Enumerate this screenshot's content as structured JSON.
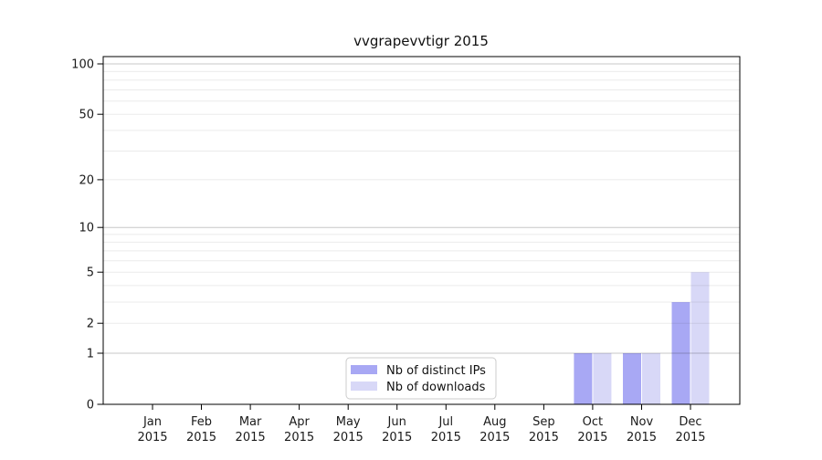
{
  "chart_data": {
    "type": "bar",
    "title": "vvgrapevvtigr 2015",
    "categories": [
      "Jan 2015",
      "Feb 2015",
      "Mar 2015",
      "Apr 2015",
      "May 2015",
      "Jun 2015",
      "Jul 2015",
      "Aug 2015",
      "Sep 2015",
      "Oct 2015",
      "Nov 2015",
      "Dec 2015"
    ],
    "series": [
      {
        "name": "Nb of distinct IPs",
        "color": "#a8a8f4",
        "values": [
          0,
          0,
          0,
          0,
          0,
          0,
          0,
          0,
          0,
          1,
          1,
          3
        ]
      },
      {
        "name": "Nb of downloads",
        "color": "#d8d8f7",
        "values": [
          0,
          0,
          0,
          0,
          0,
          0,
          0,
          0,
          0,
          1,
          1,
          5
        ]
      }
    ],
    "yscale": "log1p",
    "ylim": [
      0,
      110
    ],
    "yticks": [
      0,
      1,
      2,
      5,
      10,
      20,
      50,
      100
    ],
    "major_gridlines": [
      1,
      10,
      100
    ],
    "minor_gridlines": [
      2,
      3,
      4,
      5,
      6,
      7,
      8,
      9,
      20,
      30,
      40,
      50,
      60,
      70,
      80,
      90
    ],
    "legend_position": "lower center",
    "grid": "on",
    "colors": {
      "spine": "#000000",
      "grid_major": "#c7c7c7",
      "grid_minor": "#ebebeb",
      "background": "#ffffff",
      "tick_text": "#1a1a1a"
    }
  }
}
